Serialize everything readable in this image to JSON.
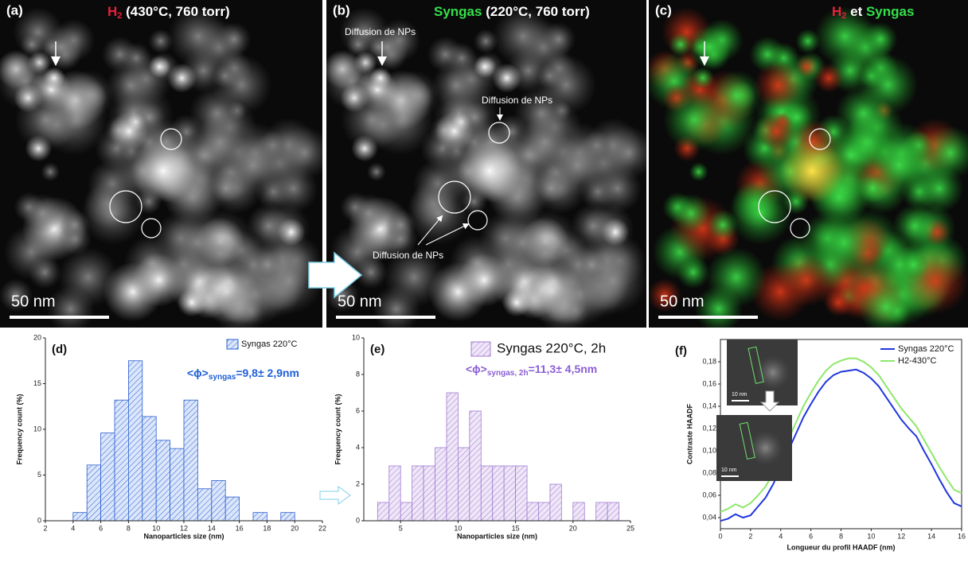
{
  "images": [
    {
      "label": "(a)",
      "title": [
        {
          "text": "H",
          "color": "#e8203a"
        },
        {
          "text": "2",
          "color": "#e8203a",
          "sub": true
        },
        {
          "text": " (430°C, 760 torr)",
          "color": "#ffffff"
        }
      ],
      "scale_bar": "50 nm",
      "annotations": [],
      "tint": "gray"
    },
    {
      "label": "(b)",
      "title": [
        {
          "text": "Syngas",
          "color": "#33e04a"
        },
        {
          "text": " (220°C, 760 torr)",
          "color": "#ffffff"
        }
      ],
      "scale_bar": "50 nm",
      "annotations": [
        "Diffusion de NPs",
        "Diffusion de NPs",
        "Diffusion de NPs"
      ],
      "tint": "gray"
    },
    {
      "label": "(c)",
      "title": [
        {
          "text": "H",
          "color": "#e8203a"
        },
        {
          "text": "2",
          "color": "#e8203a",
          "sub": true
        },
        {
          "text": " et ",
          "color": "#ffffff"
        },
        {
          "text": "Syngas",
          "color": "#33e04a"
        }
      ],
      "scale_bar": "50 nm",
      "annotations": [],
      "tint": "rg"
    }
  ],
  "chart_data": [
    {
      "type": "histogram",
      "panel_label": "(d)",
      "x_label": "Nanoparticles size (nm)",
      "y_label": "Frequency count (%)",
      "bins": [
        4,
        5,
        6,
        7,
        8,
        9,
        10,
        11,
        12,
        13,
        14,
        15,
        16,
        17,
        18,
        19,
        20
      ],
      "counts": [
        0.9,
        6.1,
        9.6,
        13.2,
        17.5,
        11.4,
        8.8,
        7.9,
        13.2,
        3.5,
        4.4,
        2.6,
        0,
        0.9,
        0,
        0.9
      ],
      "series_name": "Syngas 220°C",
      "color": "#2a5fd0",
      "fill": "#dbe6fb",
      "legend": "upper right",
      "annotation_symbol": "<ϕ>",
      "annotation_subscript": "syngas",
      "annotation_text": "=9,8± 2,9nm",
      "annotation_color": "#1f5fd6",
      "xlim": [
        2,
        22
      ],
      "xticks": [
        2,
        4,
        6,
        8,
        10,
        12,
        14,
        16,
        18,
        20,
        22
      ],
      "ylim": [
        0,
        20
      ],
      "yticks": [
        0,
        5,
        10,
        15,
        20
      ]
    },
    {
      "type": "histogram",
      "panel_label": "(e)",
      "x_label": "Nanoparticles size (nm)",
      "y_label": "Frequency count (%)",
      "bins": [
        3,
        4,
        5,
        6,
        7,
        8,
        9,
        10,
        11,
        12,
        13,
        14,
        15,
        16,
        17,
        18,
        19,
        20,
        21,
        22,
        23,
        24
      ],
      "counts": [
        1,
        3,
        1,
        3,
        3,
        4,
        7,
        4,
        6,
        3,
        3,
        3,
        3,
        1,
        1,
        2,
        0,
        1,
        0,
        1,
        1
      ],
      "series_name": "Syngas 220°C, 2h",
      "color": "#a07cd0",
      "fill": "#efe6f8",
      "legend": "upper right",
      "annotation_symbol": "<ϕ>",
      "annotation_subscript": "syngas, 2h",
      "annotation_text": "=11,3± 4,5nm",
      "annotation_color": "#8a5fd6",
      "xlim": [
        1.8,
        25
      ],
      "xticks": [
        5,
        10,
        15,
        20,
        25
      ],
      "ylim": [
        0,
        10
      ],
      "yticks": [
        0,
        2,
        4,
        6,
        8,
        10
      ]
    },
    {
      "type": "line",
      "panel_label": "(f)",
      "x_label": "Longueur du profil HAADF (nm)",
      "y_label": "Contraste HAADF",
      "inset_scale_labels": [
        "10 nm",
        "10 nm"
      ],
      "legend": "upper right",
      "x": [
        0,
        0.5,
        1,
        1.5,
        2,
        2.5,
        3,
        3.5,
        4,
        4.5,
        5,
        5.5,
        6,
        6.5,
        7,
        7.5,
        8,
        8.5,
        9,
        9.5,
        10,
        10.5,
        11,
        11.5,
        12,
        12.5,
        13,
        13.5,
        14,
        14.5,
        15,
        15.5,
        16
      ],
      "series": [
        {
          "name": "Syngas 220°C",
          "color": "#2036e0",
          "values": [
            0.037,
            0.039,
            0.043,
            0.04,
            0.042,
            0.05,
            0.058,
            0.07,
            0.085,
            0.1,
            0.115,
            0.13,
            0.142,
            0.153,
            0.162,
            0.168,
            0.171,
            0.172,
            0.173,
            0.17,
            0.165,
            0.158,
            0.148,
            0.138,
            0.128,
            0.12,
            0.113,
            0.1,
            0.088,
            0.075,
            0.063,
            0.053,
            0.05
          ]
        },
        {
          "name": "H2-430°C",
          "color": "#8de86a",
          "values": [
            0.045,
            0.048,
            0.052,
            0.049,
            0.053,
            0.06,
            0.068,
            0.08,
            0.095,
            0.11,
            0.125,
            0.14,
            0.152,
            0.163,
            0.172,
            0.178,
            0.181,
            0.183,
            0.183,
            0.18,
            0.175,
            0.168,
            0.158,
            0.148,
            0.138,
            0.13,
            0.122,
            0.11,
            0.098,
            0.086,
            0.075,
            0.065,
            0.062
          ]
        }
      ],
      "xlim": [
        0,
        16
      ],
      "xticks": [
        0,
        2,
        4,
        6,
        8,
        10,
        12,
        14,
        16
      ],
      "ylim": [
        0.03,
        0.2
      ],
      "yticks": [
        {
          "value": 0.04,
          "label": "0,04"
        },
        {
          "value": 0.06,
          "label": "0,06"
        },
        {
          "value": 0.08,
          "label": "0,08"
        },
        {
          "value": 0.1,
          "label": "0,10"
        },
        {
          "value": 0.12,
          "label": "0,12"
        },
        {
          "value": 0.14,
          "label": "0,14"
        },
        {
          "value": 0.16,
          "label": "0,16"
        },
        {
          "value": 0.18,
          "label": "0,18"
        }
      ]
    }
  ]
}
